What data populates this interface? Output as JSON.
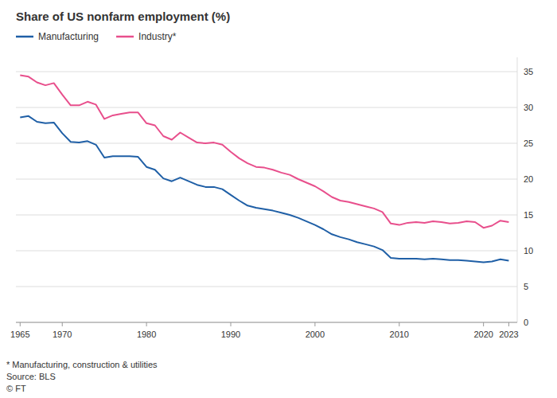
{
  "chart_data": {
    "type": "line",
    "title": "Share of US nonfarm employment (%)",
    "annotations": [
      "* Manufacturing, construction & utilities",
      "Source: BLS",
      "© FT"
    ],
    "x": [
      1965,
      1966,
      1967,
      1968,
      1969,
      1970,
      1971,
      1972,
      1973,
      1974,
      1975,
      1976,
      1977,
      1978,
      1979,
      1980,
      1981,
      1982,
      1983,
      1984,
      1985,
      1986,
      1987,
      1988,
      1989,
      1990,
      1991,
      1992,
      1993,
      1994,
      1995,
      1996,
      1997,
      1998,
      1999,
      2000,
      2001,
      2002,
      2003,
      2004,
      2005,
      2006,
      2007,
      2008,
      2009,
      2010,
      2011,
      2012,
      2013,
      2014,
      2015,
      2016,
      2017,
      2018,
      2019,
      2020,
      2021,
      2022,
      2023
    ],
    "series": [
      {
        "name": "Manufacturing",
        "color": "#1f5fa6",
        "values": [
          28.6,
          28.8,
          28.0,
          27.8,
          27.9,
          26.4,
          25.2,
          25.1,
          25.3,
          24.8,
          23.0,
          23.2,
          23.2,
          23.2,
          23.1,
          21.7,
          21.3,
          20.1,
          19.7,
          20.2,
          19.7,
          19.2,
          18.9,
          18.9,
          18.6,
          17.8,
          17.0,
          16.3,
          16.0,
          15.8,
          15.6,
          15.3,
          15.0,
          14.6,
          14.1,
          13.6,
          13.0,
          12.3,
          11.9,
          11.6,
          11.2,
          10.9,
          10.6,
          10.1,
          9.0,
          8.9,
          8.9,
          8.9,
          8.8,
          8.9,
          8.8,
          8.7,
          8.7,
          8.6,
          8.5,
          8.4,
          8.5,
          8.8,
          8.6
        ]
      },
      {
        "name": "Industry*",
        "color": "#e84f8c",
        "values": [
          34.5,
          34.3,
          33.5,
          33.1,
          33.4,
          31.8,
          30.3,
          30.3,
          30.8,
          30.4,
          28.4,
          28.9,
          29.1,
          29.3,
          29.3,
          27.8,
          27.5,
          26.0,
          25.5,
          26.5,
          25.8,
          25.1,
          25.0,
          25.1,
          24.8,
          23.8,
          22.9,
          22.2,
          21.7,
          21.6,
          21.3,
          20.9,
          20.6,
          20.0,
          19.5,
          19.0,
          18.3,
          17.5,
          17.0,
          16.8,
          16.5,
          16.2,
          15.9,
          15.4,
          13.8,
          13.6,
          13.9,
          14.0,
          13.9,
          14.1,
          14.0,
          13.8,
          13.9,
          14.1,
          14.0,
          13.2,
          13.5,
          14.2,
          14.0
        ]
      }
    ],
    "xlim": [
      1964.5,
      2024
    ],
    "xticks": [
      1965,
      1970,
      1980,
      1990,
      2000,
      2010,
      2020,
      2023
    ],
    "ylim": [
      0,
      37
    ],
    "yticks": [
      0,
      5,
      10,
      15,
      20,
      25,
      30,
      35
    ],
    "grid": true,
    "legend": "top"
  }
}
